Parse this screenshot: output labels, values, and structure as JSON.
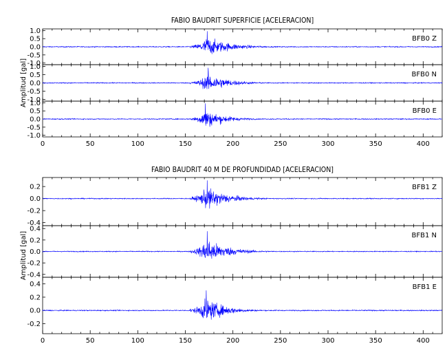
{
  "chart_data": [
    {
      "type": "line",
      "title": "FABIO BAUDRIT SUPERFICIE [ACELERACION]",
      "ylabel": "Amplitud [gal]",
      "xlim": [
        0,
        420
      ],
      "xticks": [
        0,
        50,
        100,
        150,
        200,
        250,
        300,
        350,
        400
      ],
      "series": [
        {
          "name": "BFB0   Z",
          "ylim": [
            -1.1,
            1.1
          ],
          "yticks": [
            -1.0,
            -0.5,
            0.0,
            0.5,
            1.0
          ],
          "color": "#0000ff",
          "noise": 0.03,
          "onset": 155,
          "peak_time": 173,
          "peak": 0.95,
          "coda": 25
        },
        {
          "name": "BFB0   N",
          "ylim": [
            -1.1,
            1.1
          ],
          "yticks": [
            -1.0,
            -0.5,
            0.0,
            0.5,
            1.0
          ],
          "color": "#0000ff",
          "noise": 0.03,
          "onset": 155,
          "peak_time": 174,
          "peak": 0.9,
          "coda": 22
        },
        {
          "name": "BFB0   E",
          "ylim": [
            -1.1,
            1.1
          ],
          "yticks": [
            -1.0,
            -0.5,
            0.0,
            0.5,
            1.0
          ],
          "color": "#0000ff",
          "noise": 0.03,
          "onset": 155,
          "peak_time": 171,
          "peak": 0.95,
          "coda": 20
        }
      ]
    },
    {
      "type": "line",
      "title": "FABIO BAUDRIT 40 M DE PROFUNDIDAD [ACELERACION]",
      "ylabel": "Amplitud [gal]",
      "xlim": [
        0,
        420
      ],
      "xticks": [
        0,
        50,
        100,
        150,
        200,
        250,
        300,
        350,
        400
      ],
      "series": [
        {
          "name": "BFB1   Z",
          "ylim": [
            -0.45,
            0.35
          ],
          "yticks": [
            -0.4,
            -0.2,
            0.0,
            0.2
          ],
          "color": "#0000ff",
          "noise": 0.008,
          "onset": 155,
          "peak_time": 173,
          "peak": 0.3,
          "coda": 22
        },
        {
          "name": "BFB1   N",
          "ylim": [
            -0.45,
            0.45
          ],
          "yticks": [
            -0.4,
            -0.2,
            0.0,
            0.2,
            0.4
          ],
          "color": "#0000ff",
          "noise": 0.008,
          "onset": 155,
          "peak_time": 173,
          "peak": 0.35,
          "coda": 22
        },
        {
          "name": "BFB1   E",
          "ylim": [
            -0.35,
            0.5
          ],
          "yticks": [
            -0.2,
            0.0,
            0.2,
            0.4
          ],
          "color": "#0000ff",
          "noise": 0.008,
          "onset": 155,
          "peak_time": 172,
          "peak": 0.3,
          "coda": 20
        }
      ]
    }
  ]
}
